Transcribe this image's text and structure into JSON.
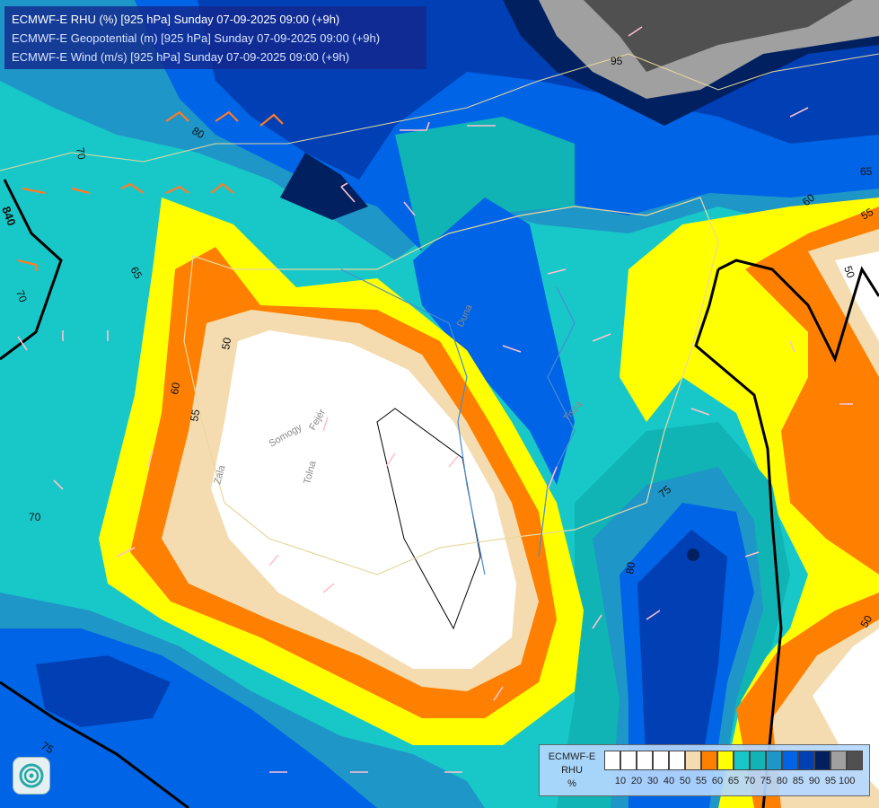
{
  "header": {
    "lines": [
      {
        "text": "ECMWF-E RHU (%) [925 hPa] Sunday 07-09-2025 09:00 (+9h)",
        "color": "#ffffff"
      },
      {
        "text": "ECMWF-E Geopotential (m) [925 hPa] Sunday 07-09-2025 09:00 (+9h)",
        "color": "#d8e4ff"
      },
      {
        "text": "ECMWF-E Wind (m/s) [925 hPa] Sunday 07-09-2025 09:00 (+9h)",
        "color": "#d8e4ff"
      }
    ]
  },
  "legend": {
    "label_lines": [
      "ECMWF-E",
      "RHU",
      "%"
    ],
    "swatch_colors": [
      "#ffffff",
      "#ffffff",
      "#ffffff",
      "#ffffff",
      "#ffffff",
      "#f5dcb0",
      "#ff8000",
      "#ffff00",
      "#18c8c8",
      "#10b4b4",
      "#1e96c8",
      "#0064e6",
      "#0040b4",
      "#002060",
      "#a0a0a0",
      "#505050"
    ],
    "ticks": [
      "10",
      "20",
      "30",
      "40",
      "50",
      "55",
      "60",
      "65",
      "70",
      "75",
      "80",
      "85",
      "90",
      "95",
      "100"
    ]
  },
  "contour_labels": {
    "rhu": [
      "95",
      "80",
      "70",
      "65",
      "70",
      "60",
      "55",
      "50",
      "65",
      "60",
      "55",
      "50",
      "75",
      "80",
      "70",
      "75",
      "50"
    ],
    "geopotential": [
      "840"
    ]
  },
  "place_labels": [
    "Zala",
    "Somogy",
    "Fejér",
    "Tolna",
    "Duna",
    "Tisza"
  ],
  "colors": {
    "rhu_100": "#505050",
    "rhu_95": "#a0a0a0",
    "rhu_90": "#002060",
    "rhu_85": "#0040b4",
    "rhu_80": "#0064e6",
    "rhu_75": "#1e96c8",
    "rhu_70": "#10b4b4",
    "rhu_65": "#18c8c8",
    "rhu_60": "#ffff00",
    "rhu_55": "#ff8000",
    "rhu_50": "#f5dcb0",
    "rhu_low": "#ffffff"
  },
  "icons": {
    "logo": "ecmwf-swirl-icon"
  }
}
